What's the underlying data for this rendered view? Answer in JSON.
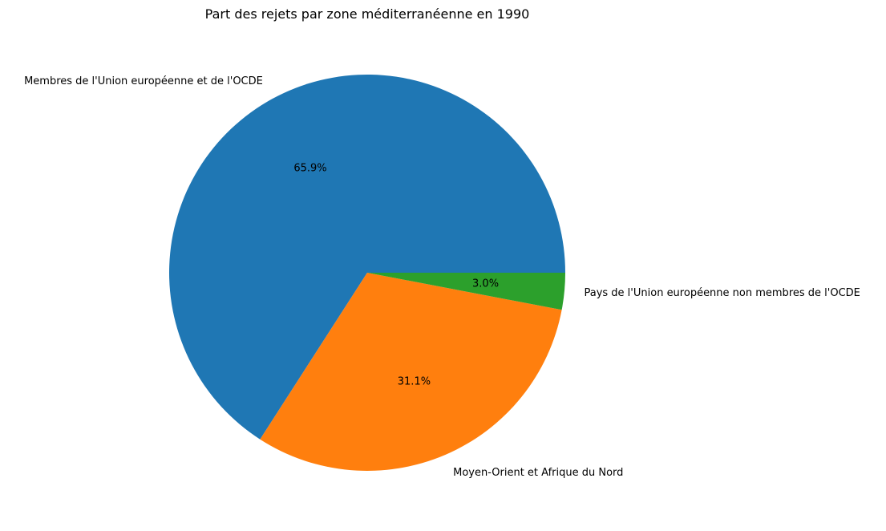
{
  "chart_data": {
    "type": "pie",
    "title": "Part des rejets par zone méditerranéenne en 1990",
    "categories": [
      "Membres de l'Union européenne et de l'OCDE",
      "Moyen-Orient et Afrique du Nord",
      "Pays de l'Union européenne non membres de l'OCDE"
    ],
    "values": [
      65.9,
      31.1,
      3.0
    ],
    "percent_labels": [
      "65.9%",
      "31.1%",
      "3.0%"
    ],
    "colors": [
      "#1f77b4",
      "#ff7f0e",
      "#2ca02c"
    ],
    "start_angle_deg": 0,
    "direction": "counterclockwise",
    "legend": "none"
  }
}
